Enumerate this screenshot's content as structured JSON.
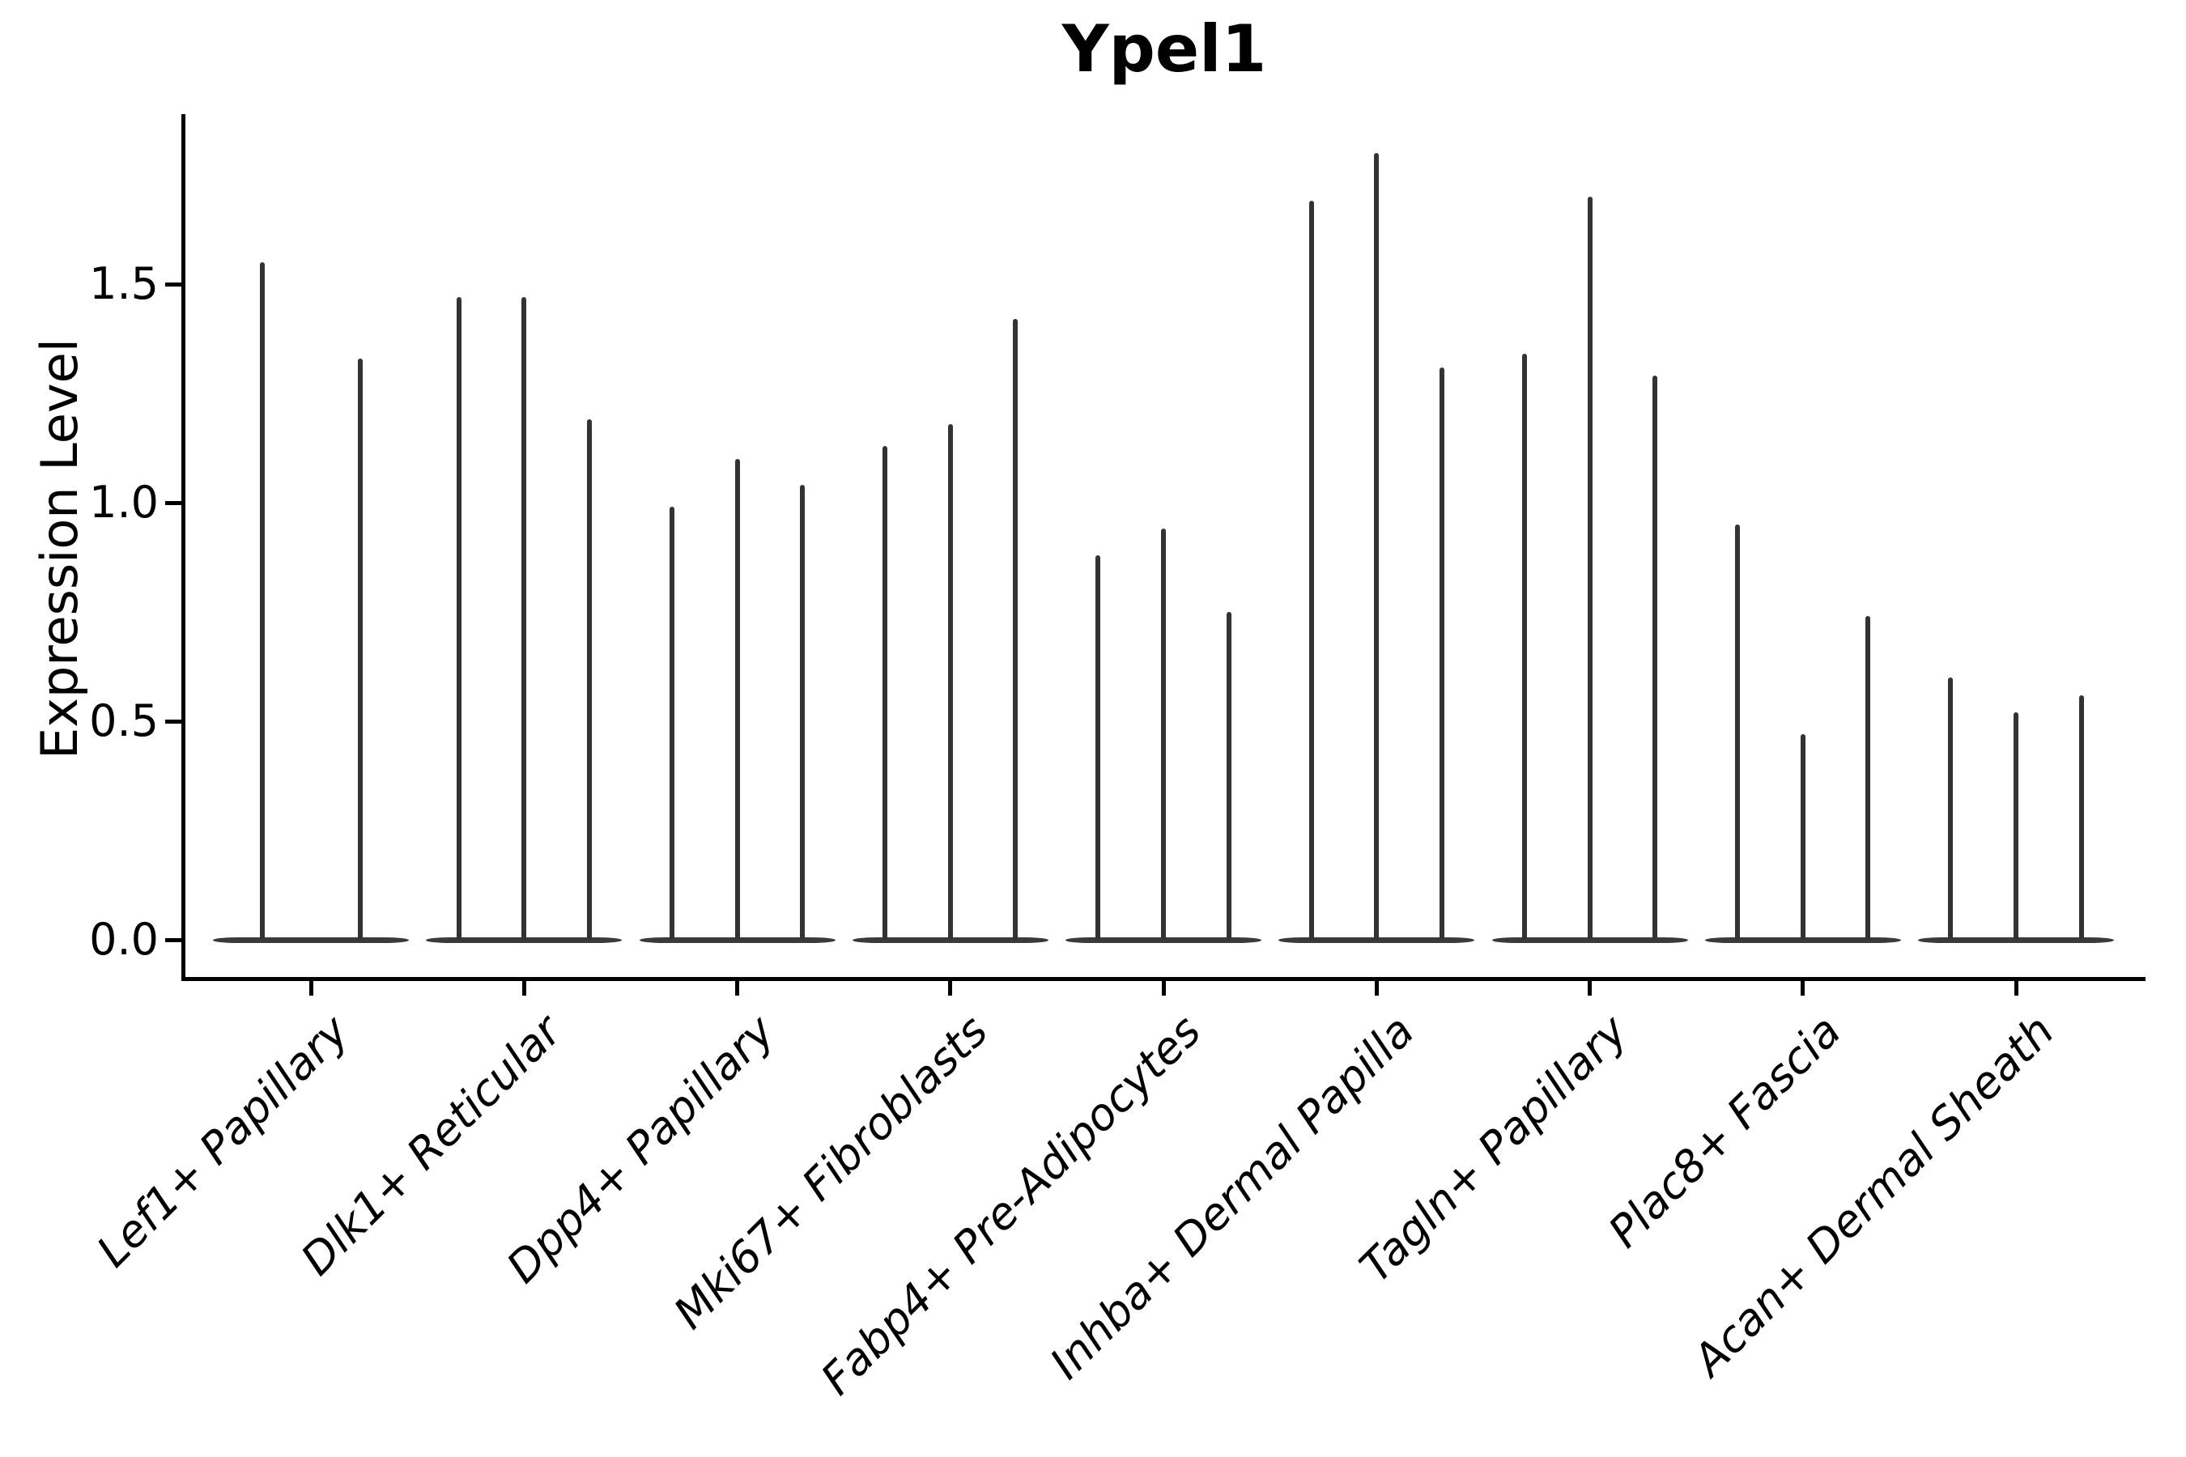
{
  "figure": {
    "background": "#ffffff"
  },
  "chart_data": {
    "type": "violin",
    "title": "Ypel1",
    "ylabel": "Expression Level",
    "xlabel": "",
    "ylim": [
      -0.09,
      1.89
    ],
    "yticks": [
      {
        "label": "0.0",
        "value": 0.0
      },
      {
        "label": "0.5",
        "value": 0.5
      },
      {
        "label": "1.0",
        "value": 1.0
      },
      {
        "label": "1.5",
        "value": 1.5
      }
    ],
    "grid": false,
    "legend": "none",
    "note": "needle-thin violins flattened at 0; values are the peak (max) expression of each violin, 2-3 violins per category",
    "categories": [
      "Lef1+ Papillary",
      "Dlk1+ Reticular",
      "Dpp4+ Papillary",
      "Mki67+ Fibroblasts",
      "Fabp4+ Pre-Adipocytes",
      "Inhba+ Dermal Papilla",
      "Tagln+ Papillary",
      "Plac8+ Fascia",
      "Acan+ Dermal Sheath"
    ],
    "groups": [
      {
        "label": "Lef1+ Papillary",
        "violin_peaks": [
          1.55,
          1.33
        ]
      },
      {
        "label": "Dlk1+ Reticular",
        "violin_peaks": [
          1.47,
          1.47,
          1.19
        ]
      },
      {
        "label": "Dpp4+ Papillary",
        "violin_peaks": [
          0.99,
          1.1,
          1.04
        ]
      },
      {
        "label": "Mki67+ Fibroblasts",
        "violin_peaks": [
          1.13,
          1.18,
          1.42
        ]
      },
      {
        "label": "Fabp4+ Pre-Adipocytes",
        "violin_peaks": [
          0.88,
          0.94,
          0.75
        ]
      },
      {
        "label": "Inhba+ Dermal Papilla",
        "violin_peaks": [
          1.69,
          1.8,
          1.31
        ]
      },
      {
        "label": "Tagln+ Papillary",
        "violin_peaks": [
          1.34,
          1.7,
          1.29
        ]
      },
      {
        "label": "Plac8+ Fascia",
        "violin_peaks": [
          0.95,
          0.47,
          0.74
        ]
      },
      {
        "label": "Acan+ Dermal Sheath",
        "violin_peaks": [
          0.6,
          0.52,
          0.56
        ]
      }
    ]
  },
  "colors": {
    "violin": "#333333",
    "violin_base": "#3a3a3a",
    "spine": "#000000",
    "text": "#000000",
    "background": "#ffffff"
  }
}
